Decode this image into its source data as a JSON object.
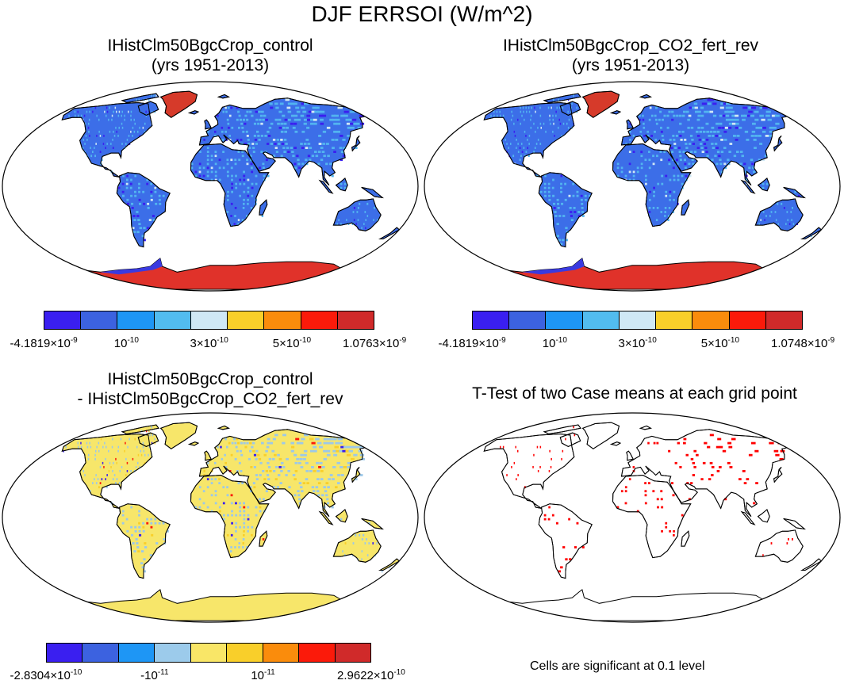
{
  "title": "DJF ERRSOI (W/m^2)",
  "panels": {
    "top_left": {
      "title_line1": "IHistClm50BgcCrop_control",
      "title_line2": "(yrs 1951-2013)",
      "colorbar": [
        "#3a1ff0",
        "#3c62e0",
        "#1e96f5",
        "#52bcef",
        "#cfe8f5",
        "#f9cf2a",
        "#fa8c0c",
        "#fb1a0a",
        "#d02a2a"
      ],
      "labels": [
        {
          "base": "-4.1819×10",
          "exp": "-9"
        },
        {
          "base": "10",
          "exp": "-10"
        },
        {
          "base": "3×10",
          "exp": "-10"
        },
        {
          "base": "5×10",
          "exp": "-10"
        },
        {
          "base": "1.0763×10",
          "exp": "-9"
        }
      ]
    },
    "top_right": {
      "title_line1": "IHistClm50BgcCrop_CO2_fert_rev",
      "title_line2": "(yrs 1951-2013)",
      "colorbar": [
        "#3a1ff0",
        "#3c62e0",
        "#1e96f5",
        "#52bcef",
        "#cfe8f5",
        "#f9cf2a",
        "#fa8c0c",
        "#fb1a0a",
        "#d02a2a"
      ],
      "labels": [
        {
          "base": "-4.1819×10",
          "exp": "-9"
        },
        {
          "base": "10",
          "exp": "-10"
        },
        {
          "base": "3×10",
          "exp": "-10"
        },
        {
          "base": "5×10",
          "exp": "-10"
        },
        {
          "base": "1.0748×10",
          "exp": "-9"
        }
      ]
    },
    "bottom_left": {
      "title_line1": "IHistClm50BgcCrop_control",
      "title_line2": "- IHistClm50BgcCrop_CO2_fert_rev",
      "colorbar": [
        "#3a1ff0",
        "#3c62e0",
        "#1e96f5",
        "#9ccbeb",
        "#f9e667",
        "#f9cf2a",
        "#fa8c0c",
        "#fb1a0a",
        "#d02a2a"
      ],
      "labels": [
        {
          "base": "-2.8304×10",
          "exp": "-10"
        },
        {
          "base": "-10",
          "exp": "-11"
        },
        {
          "base": "10",
          "exp": "-11"
        },
        {
          "base": "2.9622×10",
          "exp": "-10"
        }
      ]
    },
    "bottom_right": {
      "title_line1": "T-Test of two Case means at each grid point",
      "footnote": "Cells are significant at 0.1 level"
    }
  },
  "colors": {
    "land_blue": "#3c6ee8",
    "land_speckle": "#52b4f0",
    "greenland_red": "#d63a2a",
    "antarctica_red": "#e0322a",
    "diff_yellow": "#f7e66a",
    "diff_speckle": "#9cc8e8",
    "significance_red": "#ff0000"
  }
}
